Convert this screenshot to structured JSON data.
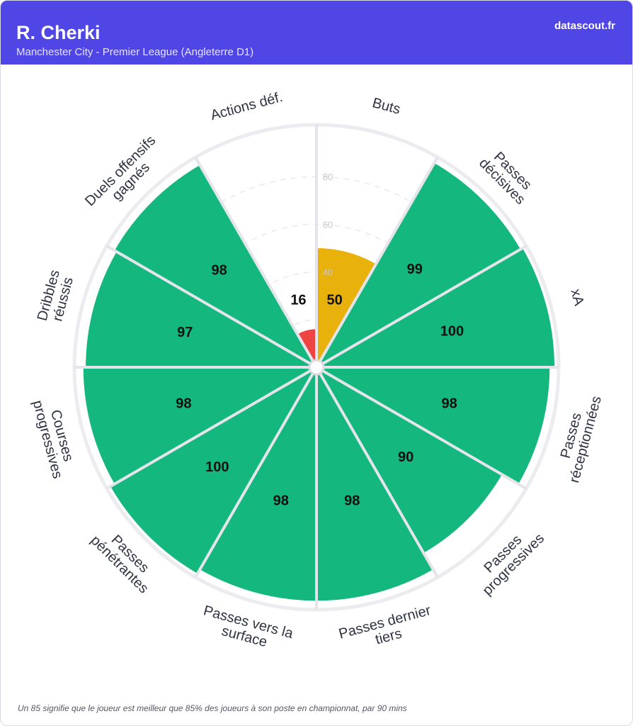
{
  "header": {
    "player_name": "R. Cherki",
    "subtitle": "Manchester City - Premier League (Angleterre D1)",
    "site": "datascout.fr",
    "background_color": "#4f46e5"
  },
  "footnote": "Un 85 signifie que le joueur est meilleur que 85% des joueurs à son poste en championnat, par 90 mins",
  "chart_data": {
    "type": "polar-bar",
    "ylim": [
      0,
      100
    ],
    "gridlines": [
      20,
      40,
      60,
      80
    ],
    "gridline_labels": [
      "40",
      "60",
      "80"
    ],
    "color_scale": {
      "high": "#14b87f",
      "mid": "#e8b10c",
      "low": "#ef4444"
    },
    "metrics": [
      {
        "label": [
          "Buts"
        ],
        "value": 50
      },
      {
        "label": [
          "Passes",
          "décisives"
        ],
        "value": 99
      },
      {
        "label": [
          "xA"
        ],
        "value": 100
      },
      {
        "label": [
          "Passes",
          "réceptionnées"
        ],
        "value": 98
      },
      {
        "label": [
          "Passes",
          "progressives"
        ],
        "value": 90
      },
      {
        "label": [
          "Passes dernier",
          "tiers"
        ],
        "value": 98
      },
      {
        "label": [
          "Passes vers la",
          "surface"
        ],
        "value": 98
      },
      {
        "label": [
          "Passes",
          "pénétrantes"
        ],
        "value": 100
      },
      {
        "label": [
          "Courses",
          "progressives"
        ],
        "value": 98
      },
      {
        "label": [
          "Dribbles",
          "réussis"
        ],
        "value": 97
      },
      {
        "label": [
          "Duels offensifs",
          "gagnés"
        ],
        "value": 98
      },
      {
        "label": [
          "Actions déf."
        ],
        "value": 16
      }
    ]
  }
}
